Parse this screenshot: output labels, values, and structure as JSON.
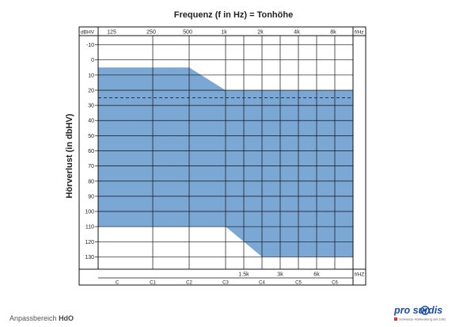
{
  "chart_data": {
    "type": "area",
    "title": "Frequenz (f in Hz) = Tonhöhe",
    "ylabel": "Hörverlust (in dbHV)",
    "y_unit_label": "dBHV",
    "top_unit_label": "f/Hz",
    "bottom_unit_label": "f/HZ",
    "ylim": [
      -15,
      135
    ],
    "y_ticks": [
      -10,
      0,
      10,
      20,
      30,
      40,
      50,
      60,
      70,
      80,
      90,
      100,
      110,
      120,
      130
    ],
    "x_octave_ticks": [
      "125",
      "250",
      "500",
      "1k",
      "2k",
      "4k",
      "8k"
    ],
    "x_half_octave_ticks": [
      "1.5k",
      "3k",
      "6k"
    ],
    "note_labels": [
      "C",
      "C1",
      "C2",
      "C3",
      "C4",
      "C5",
      "C6"
    ],
    "fitting_range": {
      "upper_boundary": [
        {
          "x": "125",
          "y": 5
        },
        {
          "x": "500",
          "y": 5
        },
        {
          "x": "1k",
          "y": 20
        },
        {
          "x": "8k",
          "y": 20
        },
        {
          "x": "10k",
          "y": 20
        }
      ],
      "lower_boundary": [
        {
          "x": "125",
          "y": 110
        },
        {
          "x": "1k",
          "y": 110
        },
        {
          "x": "2k",
          "y": 130
        },
        {
          "x": "10k",
          "y": 130
        }
      ]
    },
    "dashed_line_y": 25,
    "fill_color": "#7ba7d4",
    "grid": true
  },
  "caption": {
    "prefix": "Anpassbereich",
    "model": "HdO"
  },
  "logo": {
    "text": "pro  surdis",
    "tagline": "Schweizer Hörberatung seit 1991"
  }
}
